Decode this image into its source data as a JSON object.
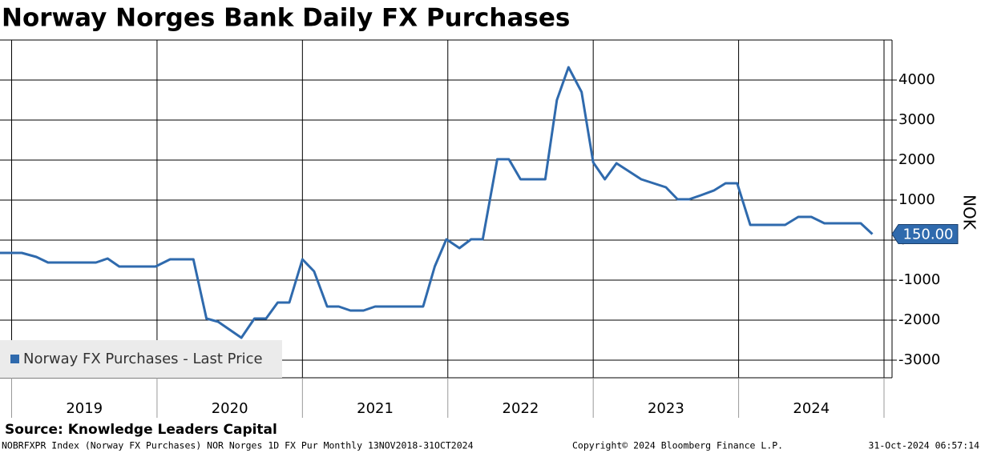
{
  "chart_data": {
    "type": "line",
    "title": "Norway Norges Bank Daily FX Purchases",
    "source": "Source: Knowledge Leaders Capital",
    "footer_left": "NOBRFXPR Index (Norway FX Purchases) NOR Norges 1D FX Pur  Monthly 13NOV2018-31OCT2024",
    "footer_center": "Copyright© 2024 Bloomberg Finance L.P.",
    "footer_right": "31-Oct-2024 06:57:14",
    "y_label": "NOK",
    "x": [
      2018.92,
      2019.07,
      2019.17,
      2019.25,
      2019.58,
      2019.66,
      2019.74,
      2019.99,
      2020.09,
      2020.25,
      2020.34,
      2020.42,
      2020.58,
      2020.67,
      2020.75,
      2020.83,
      2020.91,
      2021.0,
      2021.08,
      2021.17,
      2021.25,
      2021.33,
      2021.42,
      2021.5,
      2021.83,
      2021.91,
      2021.99,
      2022.08,
      2022.16,
      2022.24,
      2022.34,
      2022.42,
      2022.5,
      2022.67,
      2022.75,
      2022.83,
      2022.92,
      2023.0,
      2023.08,
      2023.16,
      2023.33,
      2023.5,
      2023.58,
      2023.66,
      2023.74,
      2023.83,
      2023.91,
      2023.99,
      2024.08,
      2024.32,
      2024.41,
      2024.5,
      2024.59,
      2024.84,
      2024.92
    ],
    "series": [
      {
        "name": "Norway FX Purchases - Last Price",
        "color": "#2f6aad",
        "values": [
          -320,
          -320,
          -420,
          -560,
          -560,
          -460,
          -660,
          -660,
          -480,
          -480,
          -1960,
          -2040,
          -2440,
          -1960,
          -1960,
          -1560,
          -1560,
          -480,
          -780,
          -1660,
          -1660,
          -1760,
          -1760,
          -1660,
          -1660,
          -660,
          20,
          -200,
          20,
          20,
          2020,
          2020,
          1520,
          1520,
          3500,
          4320,
          3700,
          1940,
          1520,
          1920,
          1520,
          1320,
          1020,
          1020,
          1120,
          1240,
          1420,
          1420,
          380,
          380,
          580,
          580,
          420,
          420,
          150
        ],
        "value_labels": [
          null,
          null,
          null,
          null,
          null,
          null,
          null,
          null,
          null,
          null,
          null,
          null,
          null,
          null,
          null,
          null,
          null,
          null,
          null,
          null,
          null,
          null,
          null,
          null,
          null,
          null,
          null,
          null,
          null,
          null,
          null,
          null,
          null,
          null,
          null,
          null,
          null,
          null,
          null,
          null,
          null,
          null,
          null,
          null,
          null,
          null,
          null,
          null,
          null,
          null,
          null,
          null,
          null,
          null,
          "150.00"
        ]
      }
    ],
    "xlim": [
      2018.92,
      2025
    ],
    "xticks": [
      2019,
      2020,
      2021,
      2022,
      2023,
      2024,
      2025
    ],
    "year_labels": [
      2019,
      2020,
      2021,
      2022,
      2023,
      2024
    ],
    "ylim": [
      -3440,
      5000
    ],
    "yticks": [
      -3000,
      -2000,
      -1000,
      0,
      1000,
      2000,
      3000,
      4000
    ],
    "y_axis_side": "right",
    "grid": true,
    "legend": "bottom-left"
  }
}
